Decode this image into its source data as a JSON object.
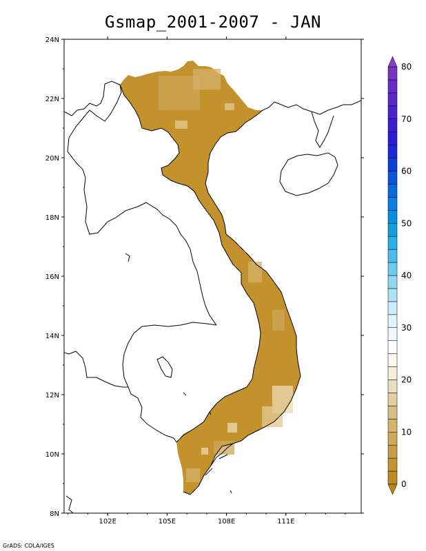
{
  "title": "Gsmap_2001-2007 - JAN",
  "credit": "GrADS: COLA/IGES",
  "axes": {
    "lat_labels": [
      "24N",
      "22N",
      "20N",
      "18N",
      "16N",
      "14N",
      "12N",
      "10N",
      "8N"
    ],
    "lat_values": [
      24,
      22,
      20,
      18,
      16,
      14,
      12,
      10,
      8
    ],
    "lon_labels": [
      "102E",
      "105E",
      "108E",
      "111E"
    ],
    "lon_values": [
      102,
      105,
      108,
      111
    ],
    "lon_range": [
      99.8,
      114.8
    ],
    "lat_range": [
      8,
      24
    ]
  },
  "colorbar": {
    "labels": [
      "0",
      "10",
      "20",
      "30",
      "40",
      "50",
      "60",
      "70",
      "80"
    ],
    "values": [
      0,
      10,
      20,
      30,
      40,
      50,
      60,
      70,
      80
    ],
    "range": [
      0,
      80
    ],
    "colors": [
      "#bf8a22",
      "#c49432",
      "#c99d44",
      "#cfa958",
      "#d4b36c",
      "#dac085",
      "#e2cea0",
      "#ecdfc0",
      "#f5eedc",
      "#fbf8f0",
      "#ffffff",
      "#f0fafd",
      "#dff4fb",
      "#c8ecf8",
      "#ade3f5",
      "#8fd8f2",
      "#6dcbee",
      "#4cbdea",
      "#2aaee5",
      "#129fe2",
      "#0a8ee0",
      "#0a7ede",
      "#0a6bdc",
      "#0a56da",
      "#0a40d8",
      "#1a2ad6",
      "#2a1ed4",
      "#3a1fd0",
      "#4a22cc",
      "#5a27c8",
      "#6a2cc4",
      "#7a33c0"
    ],
    "below_color": "#b8851a",
    "above_color": "#8a3ec8"
  },
  "field": {
    "land_color": "#c4922c",
    "variation_colors": [
      "#cfa55a",
      "#d4b06a",
      "#e2c890",
      "#ecd8b0"
    ]
  }
}
